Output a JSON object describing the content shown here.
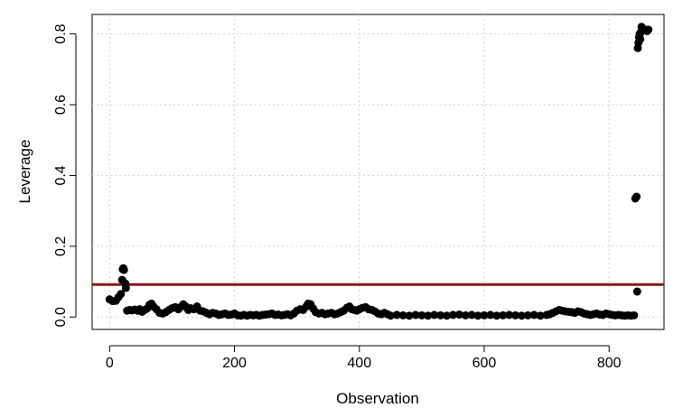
{
  "chart_data": {
    "type": "scatter",
    "title": "",
    "xlabel": "Observation",
    "ylabel": "Leverage",
    "xlim": [
      -28,
      888
    ],
    "ylim": [
      -0.035,
      0.855
    ],
    "x_ticks": [
      0,
      200,
      400,
      600,
      800
    ],
    "y_ticks": [
      0.0,
      0.2,
      0.4,
      0.6,
      0.8
    ],
    "x_tick_labels": [
      "0",
      "200",
      "400",
      "600",
      "800"
    ],
    "y_tick_labels": [
      "0.0",
      "0.2",
      "0.4",
      "0.6",
      "0.8"
    ],
    "grid": true,
    "reference_line": {
      "y": 0.092,
      "color": "#8b1a1a"
    },
    "point_color": "#000000",
    "points": [
      [
        0,
        0.05
      ],
      [
        5,
        0.045
      ],
      [
        10,
        0.046
      ],
      [
        14,
        0.056
      ],
      [
        18,
        0.065
      ],
      [
        20,
        0.105
      ],
      [
        21,
        0.135
      ],
      [
        22,
        0.138
      ],
      [
        23,
        0.133
      ],
      [
        25,
        0.095
      ],
      [
        26,
        0.082
      ],
      [
        28,
        0.018
      ],
      [
        32,
        0.02
      ],
      [
        36,
        0.019
      ],
      [
        40,
        0.021
      ],
      [
        45,
        0.018
      ],
      [
        48,
        0.022
      ],
      [
        52,
        0.015
      ],
      [
        56,
        0.02
      ],
      [
        60,
        0.024
      ],
      [
        64,
        0.035
      ],
      [
        67,
        0.038
      ],
      [
        70,
        0.03
      ],
      [
        75,
        0.022
      ],
      [
        80,
        0.012
      ],
      [
        85,
        0.01
      ],
      [
        90,
        0.014
      ],
      [
        95,
        0.02
      ],
      [
        100,
        0.025
      ],
      [
        105,
        0.028
      ],
      [
        110,
        0.022
      ],
      [
        115,
        0.03
      ],
      [
        118,
        0.036
      ],
      [
        122,
        0.03
      ],
      [
        126,
        0.02
      ],
      [
        130,
        0.025
      ],
      [
        135,
        0.022
      ],
      [
        140,
        0.03
      ],
      [
        145,
        0.018
      ],
      [
        150,
        0.016
      ],
      [
        155,
        0.012
      ],
      [
        160,
        0.008
      ],
      [
        165,
        0.012
      ],
      [
        170,
        0.01
      ],
      [
        175,
        0.006
      ],
      [
        180,
        0.008
      ],
      [
        185,
        0.01
      ],
      [
        190,
        0.006
      ],
      [
        195,
        0.007
      ],
      [
        200,
        0.01
      ],
      [
        205,
        0.005
      ],
      [
        210,
        0.004
      ],
      [
        215,
        0.006
      ],
      [
        220,
        0.004
      ],
      [
        225,
        0.006
      ],
      [
        230,
        0.005
      ],
      [
        235,
        0.006
      ],
      [
        240,
        0.004
      ],
      [
        245,
        0.006
      ],
      [
        250,
        0.007
      ],
      [
        255,
        0.008
      ],
      [
        260,
        0.01
      ],
      [
        265,
        0.006
      ],
      [
        270,
        0.007
      ],
      [
        275,
        0.005
      ],
      [
        280,
        0.006
      ],
      [
        285,
        0.008
      ],
      [
        290,
        0.005
      ],
      [
        295,
        0.01
      ],
      [
        300,
        0.018
      ],
      [
        305,
        0.022
      ],
      [
        310,
        0.02
      ],
      [
        315,
        0.03
      ],
      [
        318,
        0.038
      ],
      [
        322,
        0.036
      ],
      [
        326,
        0.024
      ],
      [
        330,
        0.014
      ],
      [
        335,
        0.01
      ],
      [
        340,
        0.012
      ],
      [
        345,
        0.008
      ],
      [
        350,
        0.01
      ],
      [
        355,
        0.012
      ],
      [
        360,
        0.008
      ],
      [
        365,
        0.01
      ],
      [
        370,
        0.014
      ],
      [
        375,
        0.018
      ],
      [
        380,
        0.026
      ],
      [
        384,
        0.03
      ],
      [
        388,
        0.022
      ],
      [
        392,
        0.02
      ],
      [
        396,
        0.018
      ],
      [
        400,
        0.022
      ],
      [
        405,
        0.026
      ],
      [
        410,
        0.028
      ],
      [
        415,
        0.022
      ],
      [
        420,
        0.02
      ],
      [
        425,
        0.016
      ],
      [
        430,
        0.01
      ],
      [
        435,
        0.008
      ],
      [
        440,
        0.012
      ],
      [
        445,
        0.008
      ],
      [
        450,
        0.004
      ],
      [
        460,
        0.006
      ],
      [
        470,
        0.005
      ],
      [
        480,
        0.004
      ],
      [
        490,
        0.006
      ],
      [
        500,
        0.005
      ],
      [
        510,
        0.004
      ],
      [
        520,
        0.006
      ],
      [
        530,
        0.005
      ],
      [
        540,
        0.004
      ],
      [
        550,
        0.006
      ],
      [
        560,
        0.007
      ],
      [
        570,
        0.005
      ],
      [
        580,
        0.006
      ],
      [
        590,
        0.004
      ],
      [
        600,
        0.005
      ],
      [
        610,
        0.006
      ],
      [
        620,
        0.004
      ],
      [
        630,
        0.005
      ],
      [
        640,
        0.006
      ],
      [
        650,
        0.005
      ],
      [
        660,
        0.004
      ],
      [
        670,
        0.005
      ],
      [
        680,
        0.006
      ],
      [
        690,
        0.004
      ],
      [
        700,
        0.006
      ],
      [
        705,
        0.008
      ],
      [
        710,
        0.012
      ],
      [
        715,
        0.016
      ],
      [
        720,
        0.02
      ],
      [
        725,
        0.018
      ],
      [
        730,
        0.016
      ],
      [
        735,
        0.015
      ],
      [
        740,
        0.014
      ],
      [
        745,
        0.012
      ],
      [
        750,
        0.016
      ],
      [
        755,
        0.014
      ],
      [
        760,
        0.01
      ],
      [
        765,
        0.008
      ],
      [
        770,
        0.006
      ],
      [
        775,
        0.008
      ],
      [
        780,
        0.01
      ],
      [
        785,
        0.007
      ],
      [
        790,
        0.006
      ],
      [
        795,
        0.01
      ],
      [
        800,
        0.008
      ],
      [
        805,
        0.006
      ],
      [
        810,
        0.005
      ],
      [
        815,
        0.006
      ],
      [
        820,
        0.005
      ],
      [
        825,
        0.004
      ],
      [
        830,
        0.005
      ],
      [
        835,
        0.004
      ],
      [
        840,
        0.005
      ],
      [
        842,
        0.335
      ],
      [
        844,
        0.34
      ],
      [
        845,
        0.072
      ],
      [
        846,
        0.76
      ],
      [
        847,
        0.775
      ],
      [
        848,
        0.79
      ],
      [
        849,
        0.8
      ],
      [
        850,
        0.785
      ],
      [
        851,
        0.805
      ],
      [
        852,
        0.82
      ],
      [
        853,
        0.815
      ],
      [
        855,
        0.81
      ],
      [
        858,
        0.812
      ],
      [
        861,
        0.808
      ],
      [
        863,
        0.812
      ]
    ]
  }
}
